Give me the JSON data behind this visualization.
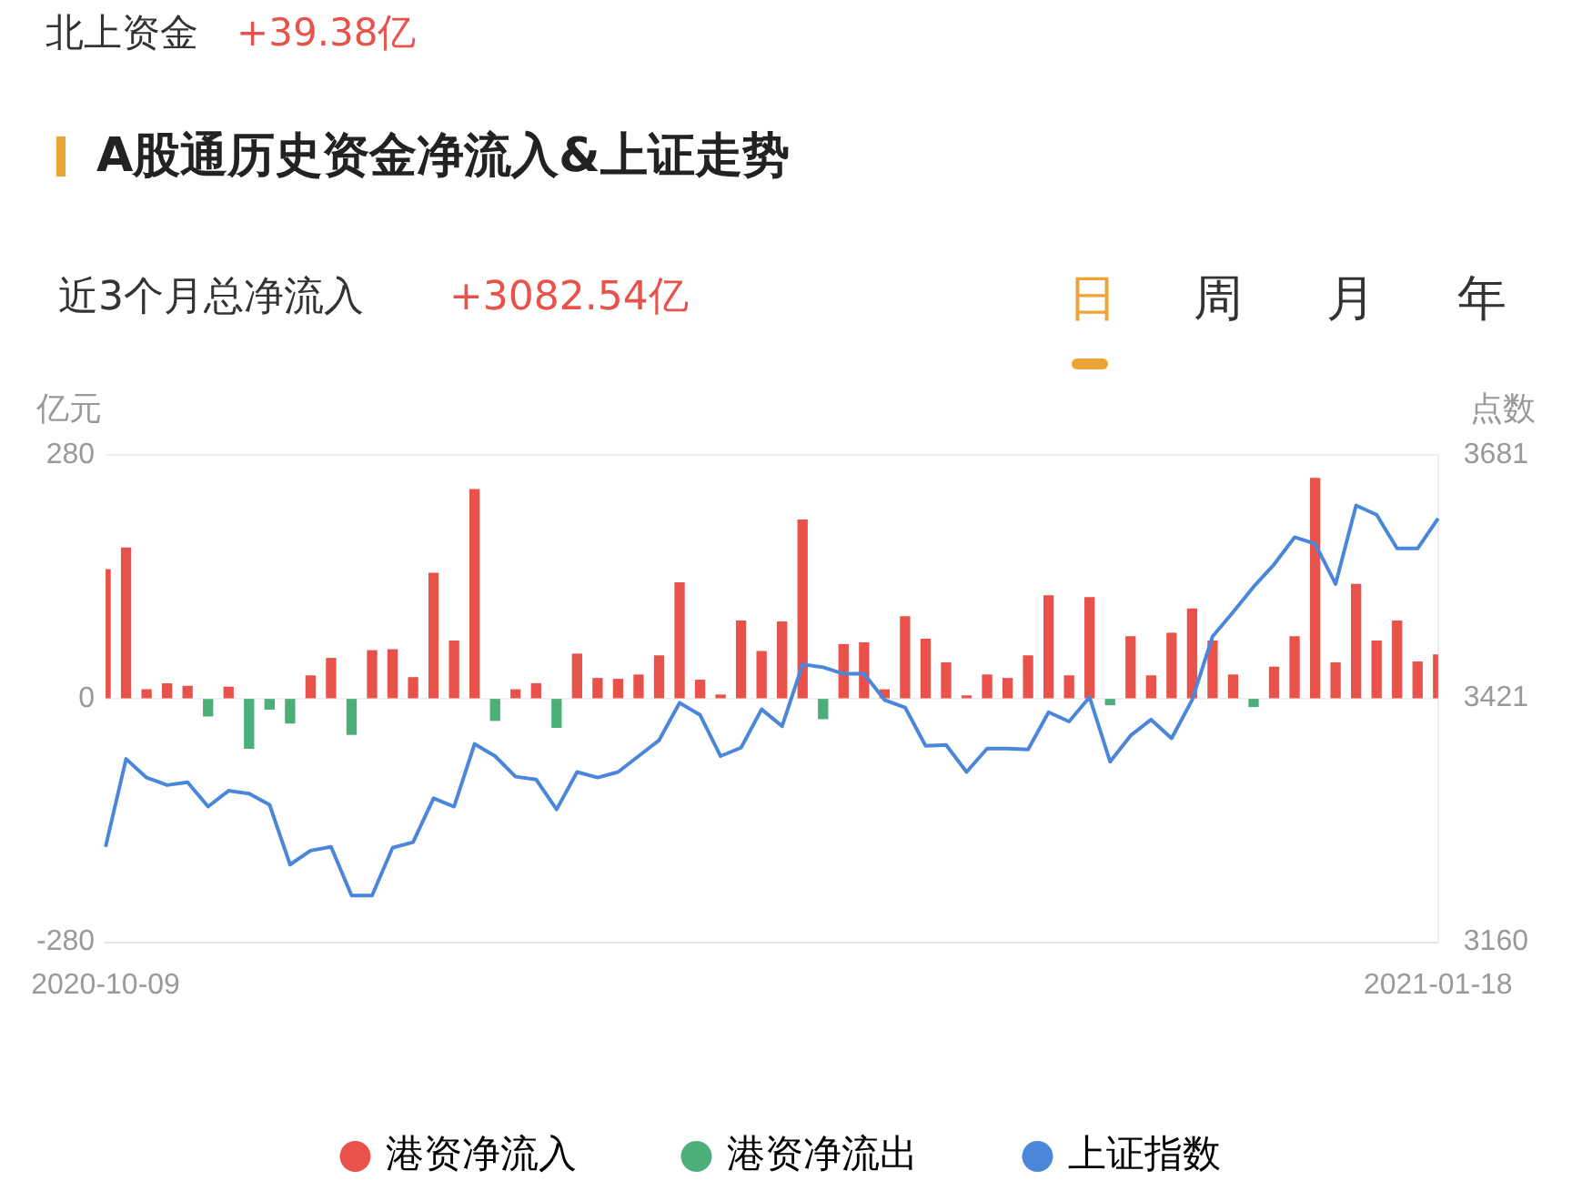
{
  "chart_data": {
    "type": "bar",
    "title": "A股通历史资金净流入&上证走势",
    "annotations": [
      "北上资金",
      "+39.38亿",
      "近3个月总净流入",
      "+3082.54亿",
      "日",
      "周",
      "月",
      "年"
    ],
    "ylabel": "亿元",
    "y2label": "点数",
    "categories": [
      "2020-10-09",
      null,
      null,
      null,
      null,
      null,
      null,
      null,
      null,
      null,
      null,
      null,
      null,
      null,
      null,
      null,
      null,
      null,
      null,
      null,
      null,
      null,
      null,
      null,
      null,
      null,
      null,
      null,
      null,
      null,
      null,
      null,
      null,
      null,
      null,
      null,
      null,
      null,
      null,
      null,
      null,
      null,
      null,
      null,
      null,
      null,
      null,
      null,
      null,
      null,
      null,
      null,
      null,
      null,
      null,
      null,
      null,
      null,
      null,
      null,
      null,
      null,
      null,
      null,
      null,
      "2021-01-18"
    ],
    "stacked": true,
    "series": [
      {
        "name": "港资净流入",
        "color": "#e8524a",
        "values": [
          148,
          173,
          10,
          17,
          14,
          null,
          13,
          null,
          null,
          null,
          26,
          46,
          null,
          55,
          56,
          24,
          144,
          66,
          240,
          null,
          10,
          17,
          null,
          51,
          23,
          22,
          27,
          49,
          133,
          21,
          4,
          89,
          54,
          88,
          205,
          null,
          62,
          64,
          10,
          94,
          68,
          41,
          3,
          27,
          23,
          49,
          118,
          26,
          116,
          null,
          71,
          26,
          75,
          103,
          66,
          27,
          null,
          36,
          71,
          253,
          41,
          131,
          66,
          89,
          42,
          50
        ]
      },
      {
        "name": "港资净流出",
        "color": "#4caf7a",
        "values": [
          null,
          null,
          null,
          null,
          null,
          -20,
          null,
          -57,
          -12,
          -28,
          null,
          null,
          -41,
          null,
          null,
          null,
          null,
          null,
          null,
          -25,
          null,
          null,
          -33,
          null,
          null,
          null,
          null,
          null,
          null,
          null,
          null,
          null,
          null,
          null,
          null,
          -23,
          null,
          null,
          null,
          null,
          null,
          null,
          null,
          null,
          null,
          null,
          null,
          null,
          null,
          -7,
          null,
          null,
          null,
          null,
          null,
          null,
          -9,
          null,
          null,
          null,
          null,
          null,
          null,
          null,
          null,
          null
        ]
      },
      {
        "name": "上证指数",
        "type": "line",
        "axis": "y2",
        "color": "#4a86d9",
        "values": [
          3262,
          3356,
          3336,
          3328,
          3331,
          3305,
          3322,
          3319,
          3307,
          3243,
          3258,
          3262,
          3210,
          3210,
          3261,
          3267,
          3314,
          3305,
          3372,
          3359,
          3337,
          3334,
          3302,
          3342,
          3336,
          3342,
          3359,
          3376,
          3416,
          3403,
          3359,
          3368,
          3409,
          3391,
          3457,
          3454,
          3447,
          3447,
          3419,
          3411,
          3370,
          3371,
          3342,
          3367,
          3367,
          3366,
          3406,
          3396,
          3422,
          3353,
          3381,
          3398,
          3378,
          3419,
          3487,
          3513,
          3540,
          3564,
          3593,
          3586,
          3543,
          3627,
          3617,
          3581,
          3581,
          3613
        ]
      }
    ],
    "ylim": [
      -280,
      280
    ],
    "yticks": [
      -280,
      0,
      280
    ],
    "y2lim": [
      3160,
      3681
    ],
    "y2ticks": [
      3160,
      3421,
      3681
    ],
    "grid": "y",
    "legend": "bottom",
    "marker": "none",
    "line_style": "solid"
  }
}
